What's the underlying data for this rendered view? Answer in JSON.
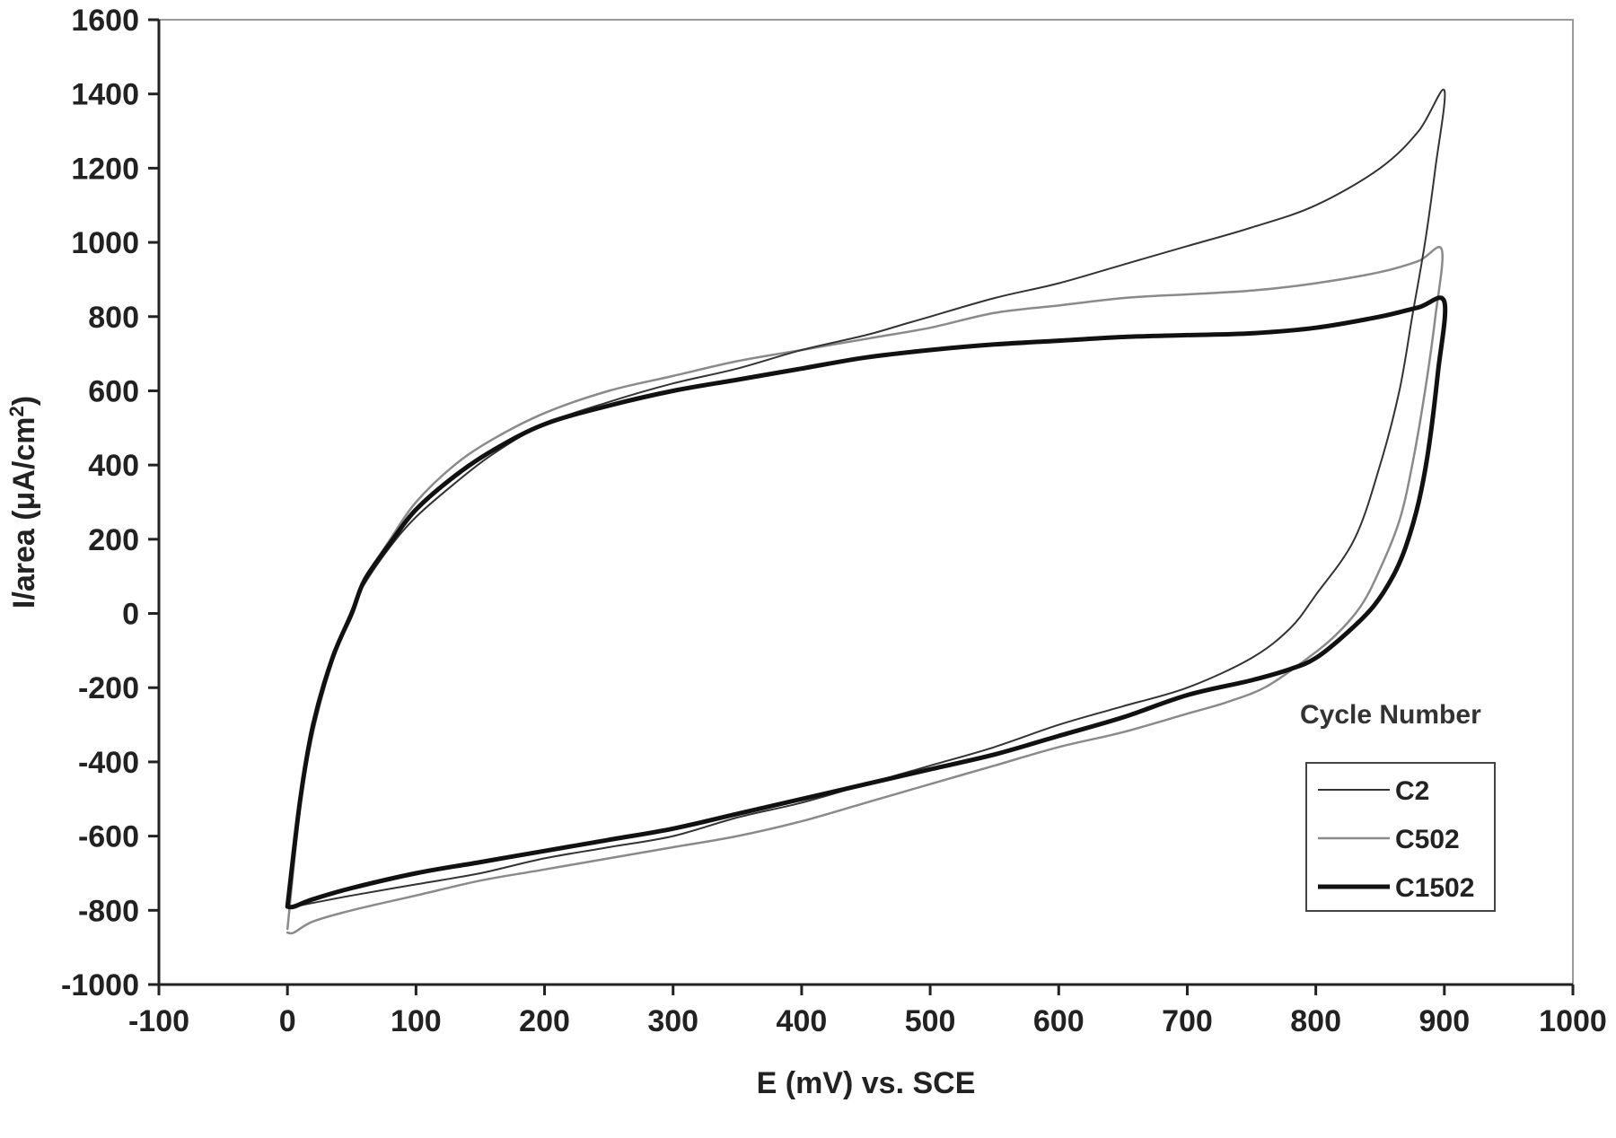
{
  "chart_data": {
    "type": "line",
    "xlabel": "E (mV) vs. SCE",
    "ylabel_main": "I/area (",
    "ylabel_mu": "μ",
    "ylabel_unit": "A/cm",
    "ylabel_sup": "2",
    "ylabel_close": ")",
    "xlim": [
      -100,
      1000
    ],
    "ylim": [
      -1000,
      1600
    ],
    "xticks": [
      -100,
      0,
      100,
      200,
      300,
      400,
      500,
      600,
      700,
      800,
      900,
      1000
    ],
    "yticks": [
      -1000,
      -800,
      -600,
      -400,
      -200,
      0,
      200,
      400,
      600,
      800,
      1000,
      1200,
      1400,
      1600
    ],
    "grid": false,
    "legend_title": "Cycle Number",
    "legend_position": "lower-right",
    "series": [
      {
        "name": "C2",
        "color": "#333333",
        "stroke_width": 2,
        "x": [
          0,
          10,
          20,
          35,
          50,
          60,
          80,
          100,
          130,
          160,
          200,
          250,
          300,
          350,
          400,
          450,
          480,
          500,
          550,
          600,
          650,
          700,
          750,
          800,
          850,
          880,
          900,
          893,
          885,
          875,
          865,
          850,
          830,
          800,
          780,
          750,
          700,
          650,
          600,
          550,
          500,
          450,
          400,
          350,
          300,
          250,
          200,
          150,
          100,
          50,
          20,
          5,
          0
        ],
        "y": [
          -790,
          -480,
          -300,
          -120,
          10,
          80,
          180,
          260,
          350,
          430,
          510,
          570,
          620,
          660,
          710,
          750,
          780,
          800,
          850,
          890,
          940,
          990,
          1040,
          1100,
          1200,
          1300,
          1410,
          1200,
          1000,
          800,
          600,
          400,
          200,
          50,
          -40,
          -120,
          -200,
          -250,
          -300,
          -360,
          -410,
          -460,
          -510,
          -550,
          -600,
          -630,
          -660,
          -700,
          -730,
          -760,
          -780,
          -790,
          -790
        ]
      },
      {
        "name": "C502",
        "color": "#8a8a8a",
        "stroke_width": 2.5,
        "x": [
          0,
          10,
          20,
          35,
          50,
          60,
          80,
          100,
          130,
          160,
          200,
          250,
          300,
          350,
          400,
          450,
          500,
          550,
          600,
          650,
          700,
          750,
          800,
          850,
          880,
          898,
          893,
          885,
          875,
          865,
          850,
          835,
          815,
          790,
          760,
          730,
          700,
          650,
          600,
          550,
          500,
          450,
          400,
          350,
          300,
          250,
          200,
          150,
          100,
          50,
          20,
          5,
          0
        ],
        "y": [
          -850,
          -520,
          -320,
          -130,
          0,
          90,
          200,
          300,
          400,
          470,
          540,
          600,
          640,
          680,
          710,
          740,
          770,
          810,
          830,
          850,
          860,
          870,
          890,
          920,
          950,
          980,
          800,
          600,
          400,
          250,
          120,
          20,
          -60,
          -130,
          -200,
          -240,
          -270,
          -320,
          -360,
          -410,
          -460,
          -510,
          -560,
          -600,
          -630,
          -660,
          -690,
          -720,
          -760,
          -800,
          -830,
          -860,
          -860
        ]
      },
      {
        "name": "C1502",
        "color": "#111111",
        "stroke_width": 5,
        "x": [
          0,
          10,
          20,
          35,
          50,
          60,
          80,
          100,
          130,
          160,
          200,
          250,
          300,
          350,
          400,
          450,
          500,
          550,
          600,
          650,
          700,
          750,
          800,
          850,
          880,
          900,
          895,
          888,
          880,
          870,
          860,
          845,
          825,
          800,
          780,
          750,
          700,
          650,
          600,
          550,
          500,
          450,
          400,
          350,
          300,
          250,
          200,
          150,
          100,
          50,
          20,
          5,
          0
        ],
        "y": [
          -790,
          -500,
          -300,
          -120,
          0,
          90,
          190,
          280,
          370,
          440,
          510,
          560,
          600,
          630,
          660,
          690,
          710,
          725,
          735,
          745,
          750,
          755,
          770,
          800,
          825,
          840,
          650,
          450,
          300,
          180,
          100,
          20,
          -50,
          -120,
          -150,
          -180,
          -220,
          -280,
          -330,
          -380,
          -420,
          -460,
          -500,
          -540,
          -580,
          -610,
          -640,
          -670,
          -700,
          -740,
          -770,
          -790,
          -790
        ]
      }
    ]
  }
}
